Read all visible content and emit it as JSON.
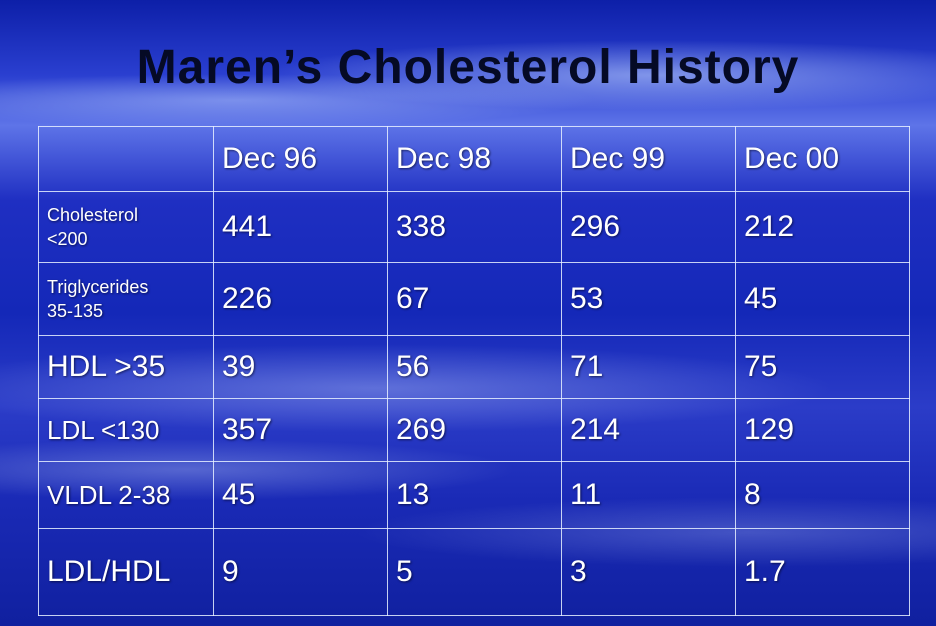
{
  "title": "Maren’s Cholesterol History",
  "table": {
    "headers": [
      "",
      "Dec 96",
      "Dec 98",
      "Dec 99",
      "Dec 00"
    ],
    "rows": [
      {
        "label_line1": "Cholesterol",
        "label_line2": "<200",
        "values": [
          "441",
          "338",
          "296",
          "212"
        ]
      },
      {
        "label_line1": "Triglycerides",
        "label_line2": "35-135",
        "values": [
          "226",
          "67",
          "53",
          "45"
        ]
      },
      {
        "label": "HDL >35",
        "values": [
          "39",
          "56",
          "71",
          "75"
        ]
      },
      {
        "label": "LDL <130",
        "values": [
          "357",
          "269",
          "214",
          "129"
        ]
      },
      {
        "label": "VLDL 2-38",
        "values": [
          "45",
          "13",
          "11",
          "8"
        ]
      },
      {
        "label": "LDL/HDL",
        "values": [
          "9",
          "5",
          "3",
          "1.7"
        ]
      }
    ]
  }
}
